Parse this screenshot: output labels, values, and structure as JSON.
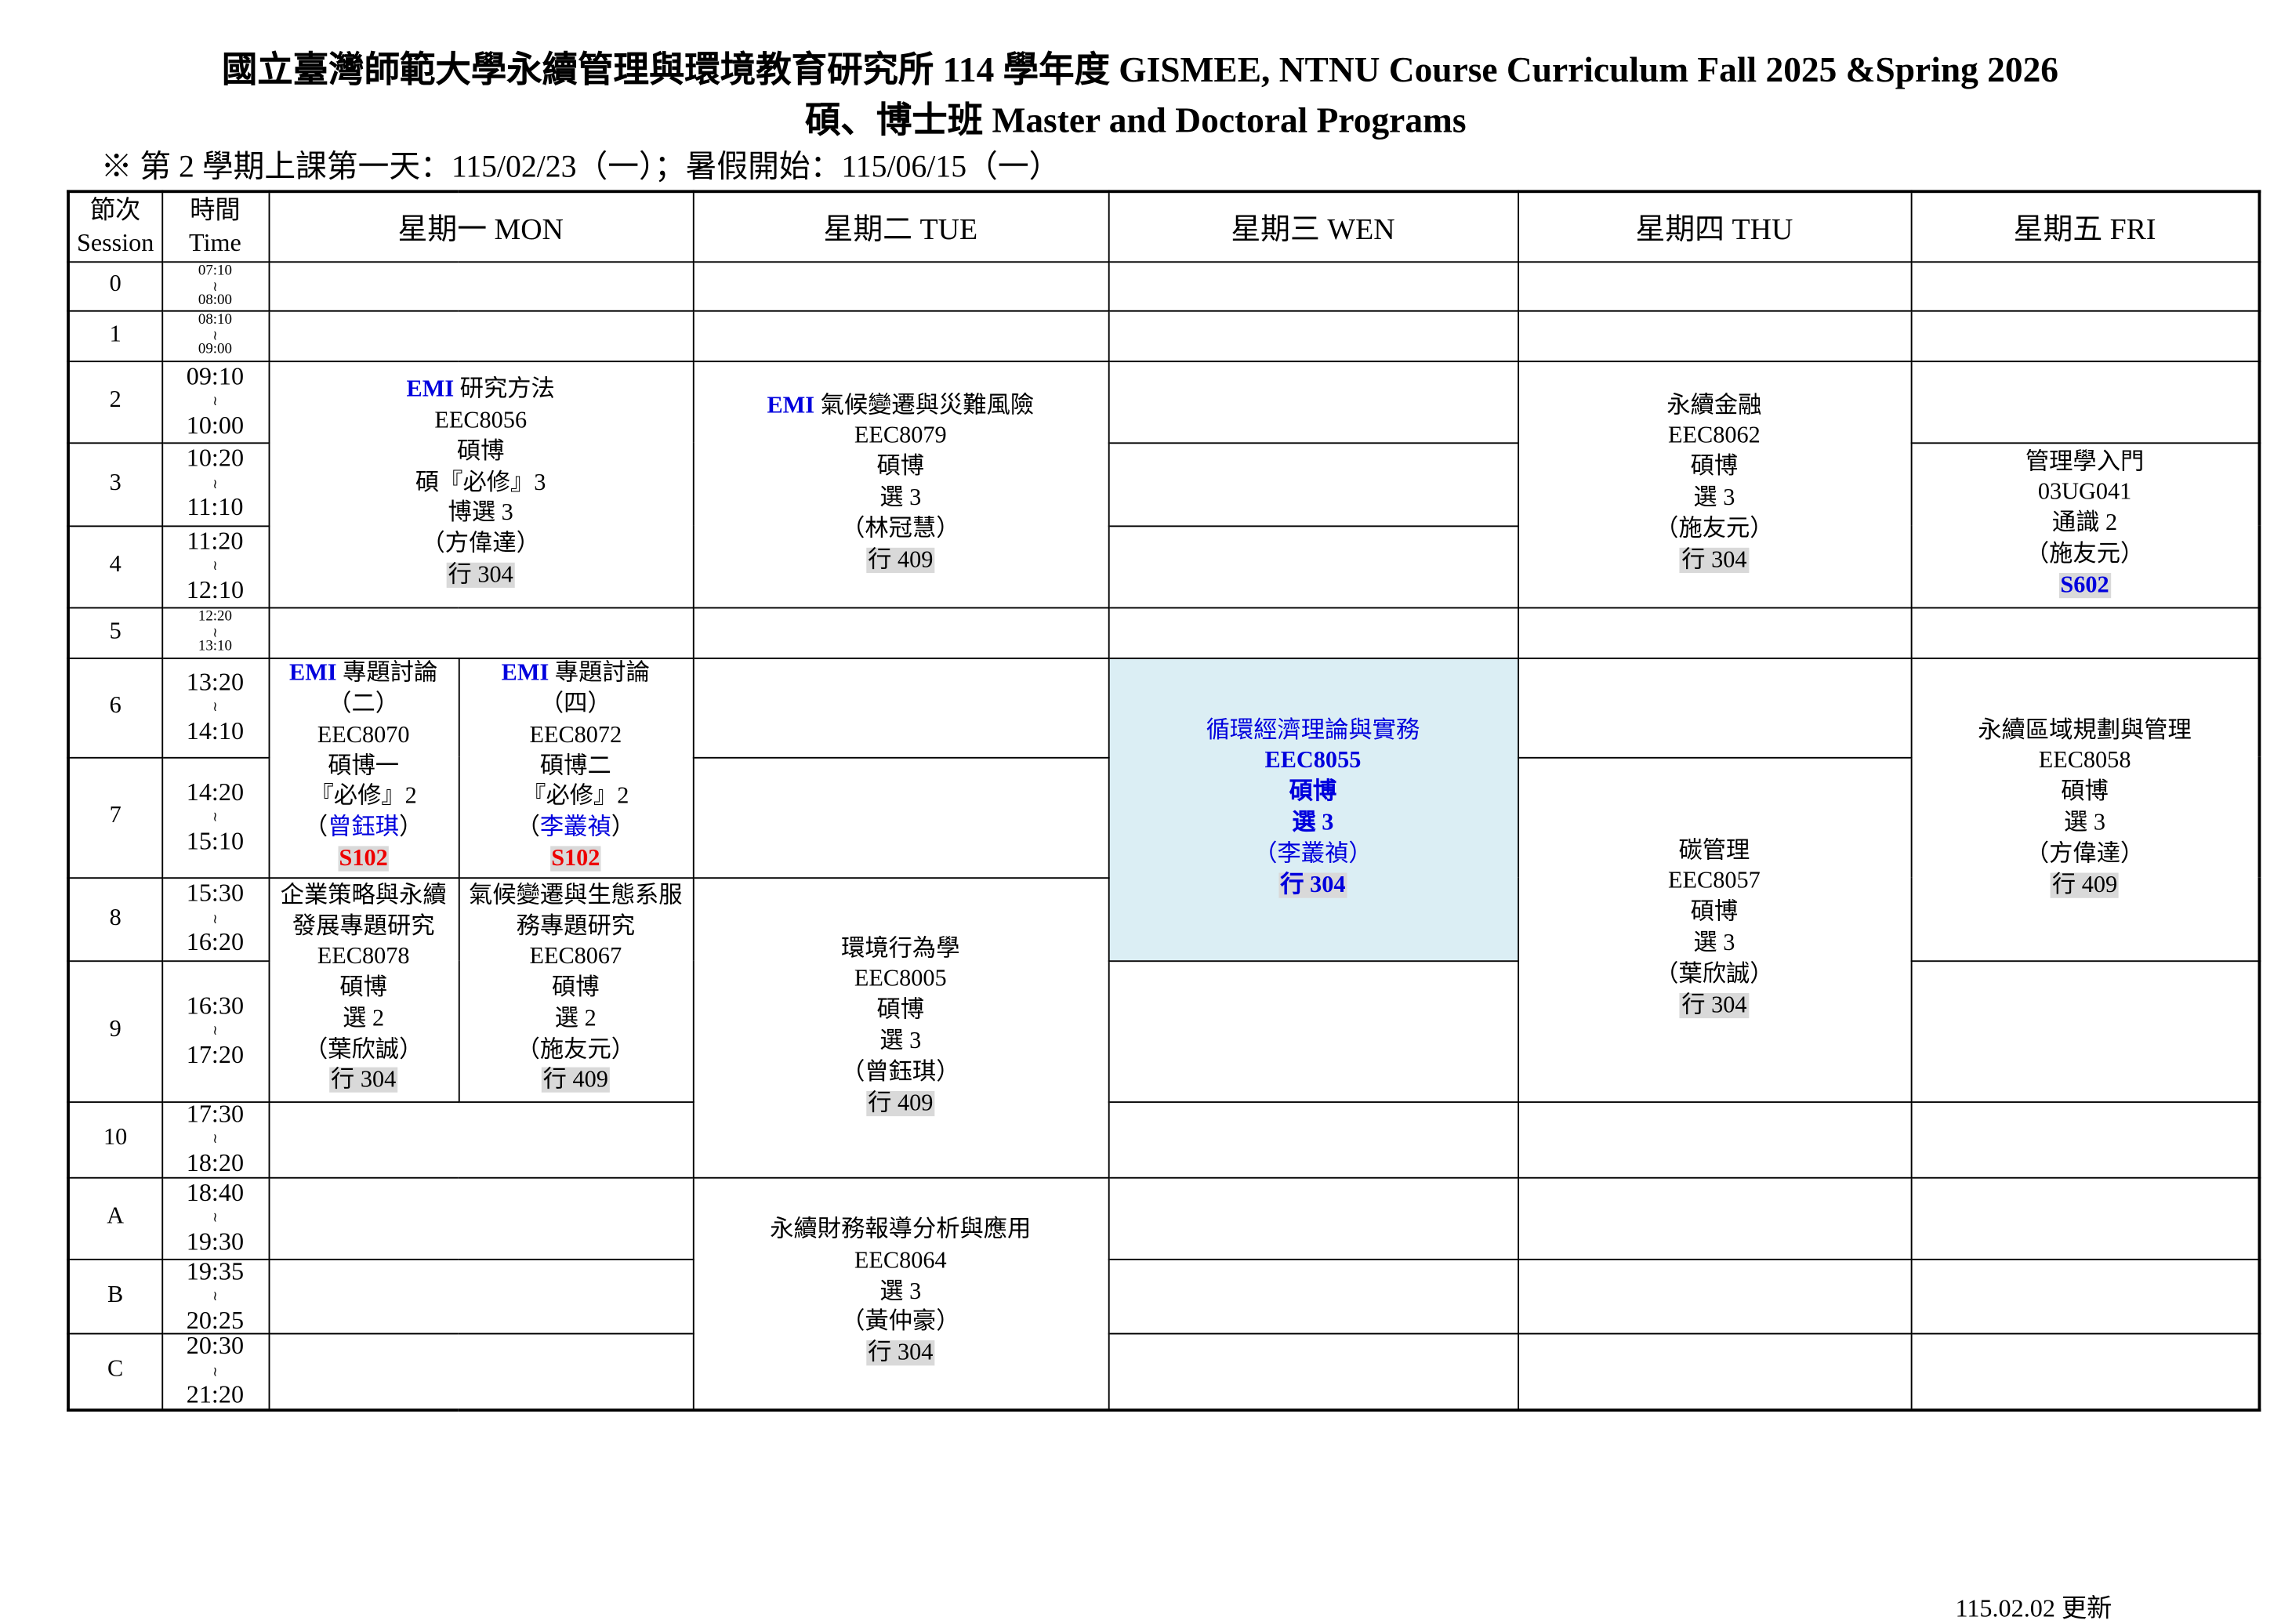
{
  "title_line1": "國立臺灣師範大學永續管理與環境教育研究所 114 學年度 GISMEE, NTNU Course Curriculum Fall 2025 &Spring 2026",
  "title_line2": "碩、博士班 Master and Doctoral Programs",
  "note": "※  第 2 學期上課第一天：115/02/23（一）；暑假開始：115/06/15（一）",
  "updated": "115.02.02 更新",
  "colors": {
    "emi": "#0000dd",
    "room_bg": "#d9d9d9",
    "highlight_room": "#ee0000",
    "wed_bg": "#dbeef4"
  },
  "header": {
    "session": [
      "節次",
      "Session"
    ],
    "time": [
      "時間",
      "Time"
    ],
    "days": [
      "星期一 MON",
      "星期二 TUE",
      "星期三 WEN",
      "星期四 THU",
      "星期五 FRI"
    ]
  },
  "rows": [
    {
      "session": "0",
      "start": "07:10",
      "end": "08:00"
    },
    {
      "session": "1",
      "start": "08:10",
      "end": "09:00"
    },
    {
      "session": "2",
      "start": "09:10",
      "end": "10:00"
    },
    {
      "session": "3",
      "start": "10:20",
      "end": "11:10"
    },
    {
      "session": "4",
      "start": "11:20",
      "end": "12:10"
    },
    {
      "session": "5",
      "start": "12:20",
      "end": "13:10"
    },
    {
      "session": "6",
      "start": "13:20",
      "end": "14:10"
    },
    {
      "session": "7",
      "start": "14:20",
      "end": "15:10"
    },
    {
      "session": "8",
      "start": "15:30",
      "end": "16:20"
    },
    {
      "session": "9",
      "start": "16:30",
      "end": "17:20"
    },
    {
      "session": "10",
      "start": "17:30",
      "end": "18:20"
    },
    {
      "session": "A",
      "start": "18:40",
      "end": "19:30"
    },
    {
      "session": "B",
      "start": "19:35",
      "end": "20:25"
    },
    {
      "session": "C",
      "start": "20:30",
      "end": "21:20"
    }
  ],
  "tilde": "≀",
  "courses": {
    "mon_research": [
      {
        "emi": "EMI",
        "t": " 研究方法"
      },
      {
        "t": "EEC8056"
      },
      {
        "t": "碩博"
      },
      {
        "t": "碩『必修』3"
      },
      {
        "t": "博選 3"
      },
      {
        "t": "（方偉達）"
      },
      {
        "t": "行 304",
        "room": true
      }
    ],
    "mon_seminar2": [
      {
        "emi": "EMI",
        "t": " 專題討論"
      },
      {
        "t": "（二）"
      },
      {
        "t": "EEC8070"
      },
      {
        "t": "碩博一"
      },
      {
        "t": "『必修』2"
      },
      {
        "t": "（",
        "b": "曾鈺琪",
        "a": "）"
      },
      {
        "t": "S102",
        "room": true,
        "red": true
      }
    ],
    "mon_seminar4": [
      {
        "emi": "EMI",
        "t": " 專題討論"
      },
      {
        "t": "（四）"
      },
      {
        "t": "EEC8072"
      },
      {
        "t": "碩博二"
      },
      {
        "t": "『必修』2"
      },
      {
        "t": "（",
        "b": "李叢禎",
        "a": "）"
      },
      {
        "t": "S102",
        "room": true,
        "red": true
      }
    ],
    "mon_strategy": [
      {
        "t": "企業策略與永續"
      },
      {
        "t": "發展專題研究"
      },
      {
        "t": "EEC8078"
      },
      {
        "t": "碩博"
      },
      {
        "t": "選 2"
      },
      {
        "t": "（葉欣誠）"
      },
      {
        "t": "行 304",
        "room": true
      }
    ],
    "mon_ecosystem": [
      {
        "t": "氣候變遷與生態系服"
      },
      {
        "t": "務專題研究"
      },
      {
        "t": "EEC8067"
      },
      {
        "t": "碩博"
      },
      {
        "t": "選 2"
      },
      {
        "t": "（施友元）"
      },
      {
        "t": "行 409",
        "room": true
      }
    ],
    "tue_climate": [
      {
        "emi": "EMI",
        "t": " 氣候變遷與災難風險"
      },
      {
        "t": "EEC8079"
      },
      {
        "t": "碩博"
      },
      {
        "t": "選 3"
      },
      {
        "t": "（林冠慧）"
      },
      {
        "t": "行 409",
        "room": true
      }
    ],
    "tue_behavior": [
      {
        "t": "環境行為學"
      },
      {
        "t": "EEC8005"
      },
      {
        "t": "碩博"
      },
      {
        "t": "選 3"
      },
      {
        "t": "（曾鈺琪）"
      },
      {
        "t": "行 409",
        "room": true
      }
    ],
    "tue_finance": [
      {
        "t": "永續財務報導分析與應用"
      },
      {
        "t": "EEC8064"
      },
      {
        "t": "選 3"
      },
      {
        "t": "（黃仲豪）"
      },
      {
        "t": "行 304",
        "room": true
      }
    ],
    "wed_circular": [
      {
        "t": "循環經濟理論與實務"
      },
      {
        "t": "EEC8055",
        "bold": true
      },
      {
        "t": "碩博",
        "bold": true
      },
      {
        "t": "選 3",
        "bold": true
      },
      {
        "t": "（李叢禎）"
      },
      {
        "t": "行 304",
        "room": true,
        "bold": true
      }
    ],
    "thu_finance": [
      {
        "t": "永續金融"
      },
      {
        "t": "EEC8062"
      },
      {
        "t": "碩博"
      },
      {
        "t": "選 3"
      },
      {
        "t": "（施友元）"
      },
      {
        "t": "行 304",
        "room": true
      }
    ],
    "thu_carbon": [
      {
        "t": "碳管理"
      },
      {
        "t": "EEC8057"
      },
      {
        "t": "碩博"
      },
      {
        "t": "選 3"
      },
      {
        "t": "（葉欣誠）"
      },
      {
        "t": "行 304",
        "room": true
      }
    ],
    "fri_mgmt": [
      {
        "t": "管理學入門"
      },
      {
        "t": "03UG041"
      },
      {
        "t": "通識 2"
      },
      {
        "t": "（施友元）"
      },
      {
        "t": "S602",
        "room": true,
        "bluebold": true
      }
    ],
    "fri_regional": [
      {
        "t": "永續區域規劃與管理"
      },
      {
        "t": "EEC8058"
      },
      {
        "t": "碩博"
      },
      {
        "t": "選 3"
      },
      {
        "t": "（方偉達）"
      },
      {
        "t": "行 409",
        "room": true
      }
    ]
  }
}
